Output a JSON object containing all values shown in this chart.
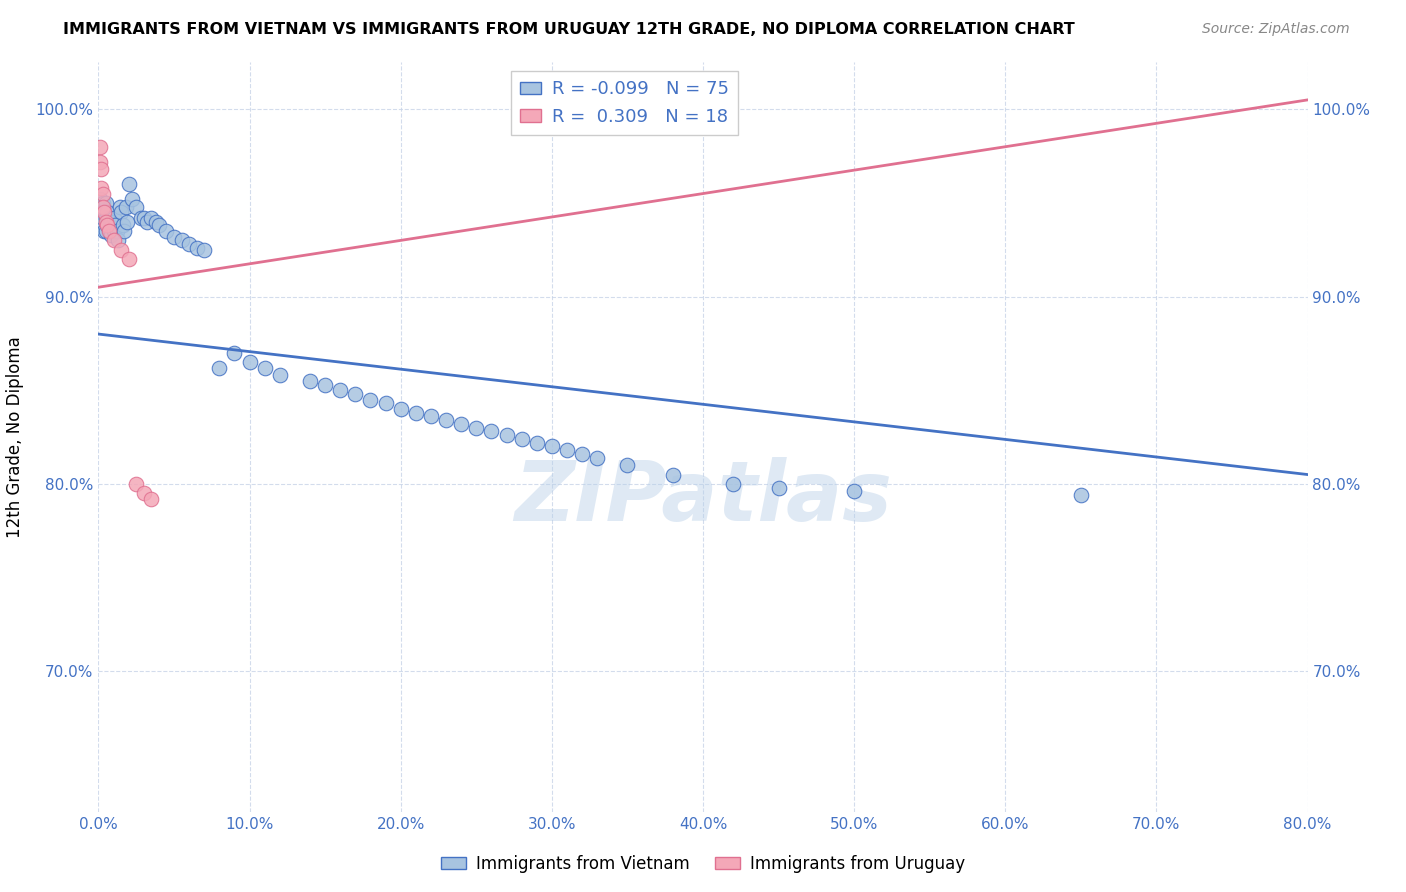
{
  "title": "IMMIGRANTS FROM VIETNAM VS IMMIGRANTS FROM URUGUAY 12TH GRADE, NO DIPLOMA CORRELATION CHART",
  "source": "Source: ZipAtlas.com",
  "ylabel": "12th Grade, No Diploma",
  "x_min": 0.0,
  "x_max": 0.8,
  "y_min": 0.625,
  "y_max": 1.025,
  "x_ticks": [
    0.0,
    0.1,
    0.2,
    0.3,
    0.4,
    0.5,
    0.6,
    0.7,
    0.8
  ],
  "y_ticks": [
    0.7,
    0.8,
    0.9,
    1.0
  ],
  "x_tick_labels": [
    "0.0%",
    "10.0%",
    "20.0%",
    "30.0%",
    "40.0%",
    "50.0%",
    "60.0%",
    "70.0%",
    "80.0%"
  ],
  "y_tick_labels": [
    "70.0%",
    "80.0%",
    "90.0%",
    "100.0%"
  ],
  "vietnam_R": -0.099,
  "vietnam_N": 75,
  "uruguay_R": 0.309,
  "uruguay_N": 18,
  "vietnam_color": "#a8c4e0",
  "uruguay_color": "#f4a8b8",
  "vietnam_line_color": "#4472c4",
  "uruguay_line_color": "#e07090",
  "watermark": "ZIPatlas",
  "vietnam_x": [
    0.001,
    0.001,
    0.002,
    0.002,
    0.003,
    0.003,
    0.004,
    0.004,
    0.005,
    0.005,
    0.005,
    0.006,
    0.006,
    0.007,
    0.007,
    0.008,
    0.008,
    0.009,
    0.01,
    0.01,
    0.011,
    0.012,
    0.013,
    0.014,
    0.015,
    0.016,
    0.017,
    0.018,
    0.019,
    0.02,
    0.022,
    0.025,
    0.028,
    0.03,
    0.032,
    0.035,
    0.038,
    0.04,
    0.045,
    0.05,
    0.055,
    0.06,
    0.065,
    0.07,
    0.08,
    0.09,
    0.1,
    0.11,
    0.12,
    0.14,
    0.15,
    0.16,
    0.17,
    0.18,
    0.19,
    0.2,
    0.21,
    0.22,
    0.23,
    0.24,
    0.25,
    0.26,
    0.27,
    0.28,
    0.29,
    0.3,
    0.31,
    0.32,
    0.33,
    0.35,
    0.38,
    0.42,
    0.45,
    0.5,
    0.65
  ],
  "vietnam_y": [
    0.952,
    0.945,
    0.948,
    0.94,
    0.95,
    0.942,
    0.946,
    0.935,
    0.95,
    0.942,
    0.935,
    0.945,
    0.938,
    0.942,
    0.936,
    0.94,
    0.933,
    0.938,
    0.942,
    0.935,
    0.938,
    0.935,
    0.93,
    0.948,
    0.945,
    0.938,
    0.935,
    0.948,
    0.94,
    0.96,
    0.952,
    0.948,
    0.942,
    0.942,
    0.94,
    0.942,
    0.94,
    0.938,
    0.935,
    0.932,
    0.93,
    0.928,
    0.926,
    0.925,
    0.862,
    0.87,
    0.865,
    0.862,
    0.858,
    0.855,
    0.853,
    0.85,
    0.848,
    0.845,
    0.843,
    0.84,
    0.838,
    0.836,
    0.834,
    0.832,
    0.83,
    0.828,
    0.826,
    0.824,
    0.822,
    0.82,
    0.818,
    0.816,
    0.814,
    0.81,
    0.805,
    0.8,
    0.798,
    0.796,
    0.794
  ],
  "uruguay_x": [
    0.001,
    0.001,
    0.002,
    0.002,
    0.003,
    0.003,
    0.004,
    0.005,
    0.006,
    0.007,
    0.01,
    0.015,
    0.02,
    0.025,
    0.03,
    0.035,
    0.31,
    0.35
  ],
  "uruguay_y": [
    0.98,
    0.972,
    0.968,
    0.958,
    0.955,
    0.948,
    0.945,
    0.94,
    0.938,
    0.935,
    0.93,
    0.925,
    0.92,
    0.8,
    0.795,
    0.792,
    0.995,
    0.998
  ],
  "viet_line_x": [
    0.0,
    0.8
  ],
  "viet_line_y": [
    0.88,
    0.805
  ],
  "uru_line_x": [
    0.0,
    0.8
  ],
  "uru_line_y": [
    0.905,
    1.005
  ]
}
